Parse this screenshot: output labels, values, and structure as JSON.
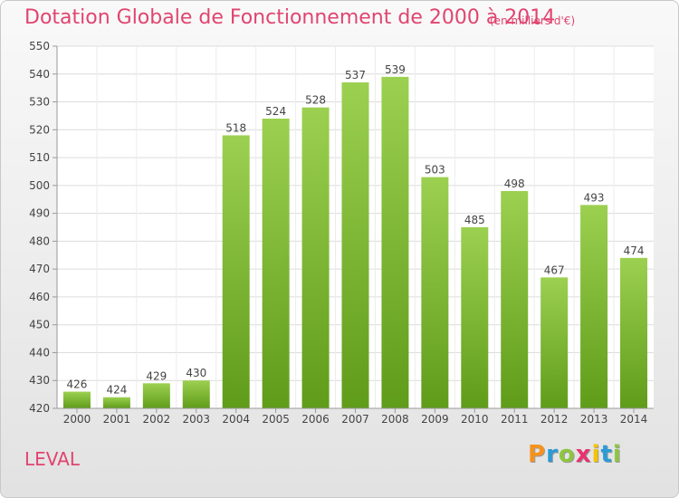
{
  "chart_data": {
    "type": "bar",
    "title": "Dotation Globale de Fonctionnement de 2000 à 2014",
    "subtitle": "(en milliers d'€)",
    "categories": [
      "2000",
      "2001",
      "2002",
      "2003",
      "2004",
      "2005",
      "2006",
      "2007",
      "2008",
      "2009",
      "2010",
      "2011",
      "2012",
      "2013",
      "2014"
    ],
    "values": [
      426,
      424,
      429,
      430,
      518,
      524,
      528,
      537,
      539,
      503,
      485,
      498,
      467,
      493,
      474
    ],
    "data_labels": [
      "426",
      "424",
      "429",
      "430",
      "518",
      "524",
      "528",
      "537",
      "539",
      "503",
      "485",
      "498",
      "467",
      "493",
      "474"
    ],
    "ylim": [
      420,
      550
    ],
    "yticks": [
      420,
      430,
      440,
      450,
      460,
      470,
      480,
      490,
      500,
      510,
      520,
      530,
      540,
      550
    ],
    "ytick_labels": [
      "420",
      "430",
      "440",
      "450",
      "460",
      "470",
      "480",
      "490",
      "500",
      "510",
      "520",
      "530",
      "540",
      "550"
    ],
    "xlabel": "",
    "ylabel": "",
    "grid": true,
    "bar_color_top": "#9cd050",
    "bar_color_bottom": "#5f9c19"
  },
  "commune": "LEVAL",
  "logo": {
    "letters": [
      "P",
      "r",
      "o",
      "x",
      "i",
      "t",
      "i"
    ],
    "colors": [
      "#f5921e",
      "#2a9bd6",
      "#8dc63f",
      "#e8336f",
      "#f5c400",
      "#2a9bd6",
      "#8dc63f"
    ]
  }
}
